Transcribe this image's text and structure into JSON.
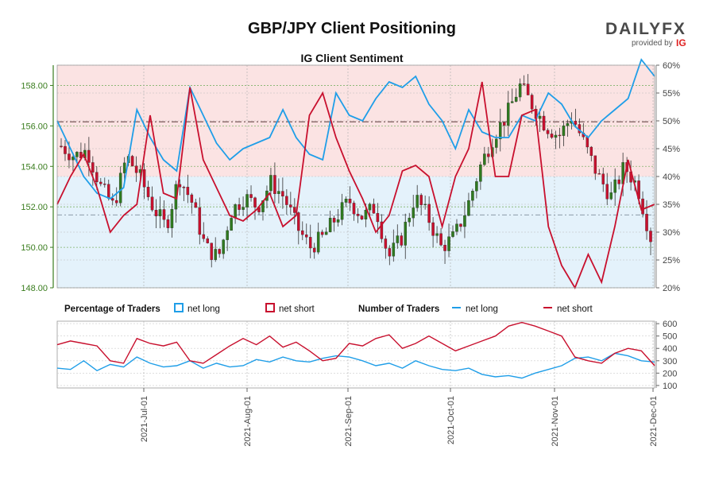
{
  "header": {
    "title": "GBP/JPY Client Positioning",
    "subtitle": "IG Client Sentiment",
    "logo_text": "DAILYFX",
    "logo_sub": "provided by",
    "logo_brand": "IG"
  },
  "legend": {
    "percentage_label": "Percentage of Traders",
    "number_label": "Number of Traders",
    "net_long": "net long",
    "net_short": "net short"
  },
  "colors": {
    "long": "#1f9ee8",
    "short": "#c8102e",
    "price_axis": "#3a7d1e",
    "candle_up": "#2f7a1f",
    "candle_down": "#c8102e",
    "long_zone": "#e4f2fb",
    "short_zone": "#fbe3e3"
  },
  "chart_data": [
    {
      "type": "candlestick+line",
      "title": "IG Client Sentiment",
      "left_axis": {
        "ticks": [
          "148.00",
          "150.00",
          "152.00",
          "154.00",
          "156.00",
          "158.00"
        ],
        "range": [
          148.0,
          159.0
        ]
      },
      "right_axis": {
        "ticks": [
          "20%",
          "25%",
          "30%",
          "35%",
          "40%",
          "45%",
          "50%",
          "55%",
          "60%"
        ],
        "range": [
          20,
          60
        ]
      },
      "reference_lines": {
        "price_dashed": 156.2,
        "price_dashdot": 151.6
      },
      "series": [
        {
          "name": "net long",
          "values": [
            50,
            45,
            40,
            37,
            36,
            38,
            52,
            47,
            43,
            41,
            56,
            51,
            46,
            43,
            45,
            46,
            47,
            52,
            47,
            44,
            43,
            55,
            51,
            50,
            54,
            57,
            56,
            58,
            53,
            50,
            45,
            52,
            48,
            47,
            47,
            51,
            50,
            55,
            53,
            49,
            47,
            50,
            52,
            54,
            61,
            58
          ]
        },
        {
          "name": "net short",
          "values": [
            35,
            40,
            44,
            38,
            30,
            33,
            35,
            51,
            37,
            36,
            56,
            43,
            38,
            33,
            32,
            34,
            37,
            31,
            33,
            51,
            55,
            47,
            41,
            36,
            30,
            33,
            41,
            42,
            40,
            31,
            40,
            45,
            57,
            40,
            40,
            51,
            52,
            31,
            24,
            20,
            26,
            21,
            31,
            43,
            34,
            35
          ]
        },
        {
          "name": "price",
          "values": [
            155.0,
            154.5,
            154.8,
            153.0,
            152.0,
            154.5,
            153.5,
            152.0,
            151.0,
            153.5,
            152.2,
            150.0,
            149.5,
            151.8,
            152.5,
            152.0,
            153.2,
            152.5,
            151.0,
            150.0,
            150.5,
            151.5,
            152.3,
            151.5,
            152.0,
            149.5,
            150.5,
            152.5,
            151.5,
            150.0,
            150.5,
            152.0,
            154.0,
            155.5,
            156.5,
            158.0,
            157.0,
            156.0,
            155.5,
            156.5,
            155.0,
            153.5,
            152.5,
            154.0,
            153.0,
            150.5
          ]
        }
      ]
    },
    {
      "type": "line",
      "title": "Number of Traders",
      "right_axis": {
        "ticks": [
          "100",
          "200",
          "300",
          "400",
          "500",
          "600"
        ],
        "range": [
          80,
          620
        ]
      },
      "x_ticks": [
        "2021-Jul-01",
        "2021-Aug-01",
        "2021-Sep-01",
        "2021-Oct-01",
        "2021-Nov-01",
        "2021-Dec-01"
      ],
      "series": [
        {
          "name": "net long",
          "values": [
            240,
            230,
            300,
            220,
            270,
            250,
            330,
            280,
            250,
            260,
            300,
            240,
            280,
            250,
            260,
            310,
            290,
            330,
            300,
            290,
            320,
            340,
            330,
            300,
            260,
            280,
            240,
            300,
            260,
            230,
            220,
            240,
            190,
            170,
            180,
            160,
            200,
            230,
            260,
            320,
            330,
            300,
            360,
            340,
            300,
            290
          ]
        },
        {
          "name": "net short",
          "values": [
            430,
            460,
            440,
            420,
            300,
            280,
            480,
            440,
            420,
            450,
            300,
            280,
            350,
            420,
            480,
            430,
            500,
            410,
            450,
            380,
            300,
            320,
            440,
            420,
            480,
            510,
            400,
            440,
            500,
            440,
            380,
            420,
            460,
            500,
            580,
            610,
            580,
            540,
            500,
            330,
            300,
            280,
            360,
            400,
            380,
            260
          ]
        }
      ]
    }
  ]
}
